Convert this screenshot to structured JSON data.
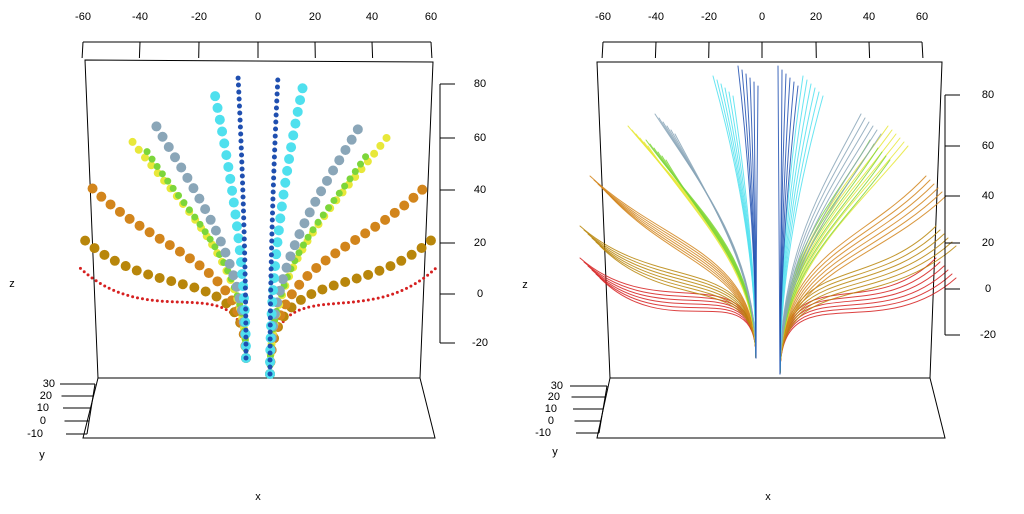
{
  "panels": [
    {
      "x_ticks": [
        "-60",
        "-40",
        "-20",
        "0",
        "20",
        "40",
        "60"
      ],
      "z_ticks": [
        "80",
        "60",
        "40",
        "20",
        "0",
        "-20"
      ],
      "y_ticks": [
        "30",
        "20",
        "10",
        "0",
        "-10"
      ],
      "x_label": "x",
      "y_label": "y",
      "z_label": "z"
    },
    {
      "x_ticks": [
        "-60",
        "-40",
        "-20",
        "0",
        "20",
        "40",
        "60"
      ],
      "z_ticks": [
        "80",
        "60",
        "40",
        "20",
        "0",
        "-20"
      ],
      "y_ticks": [
        "30",
        "20",
        "10",
        "0",
        "-10"
      ],
      "x_label": "x",
      "y_label": "y",
      "z_label": "z"
    }
  ]
}
